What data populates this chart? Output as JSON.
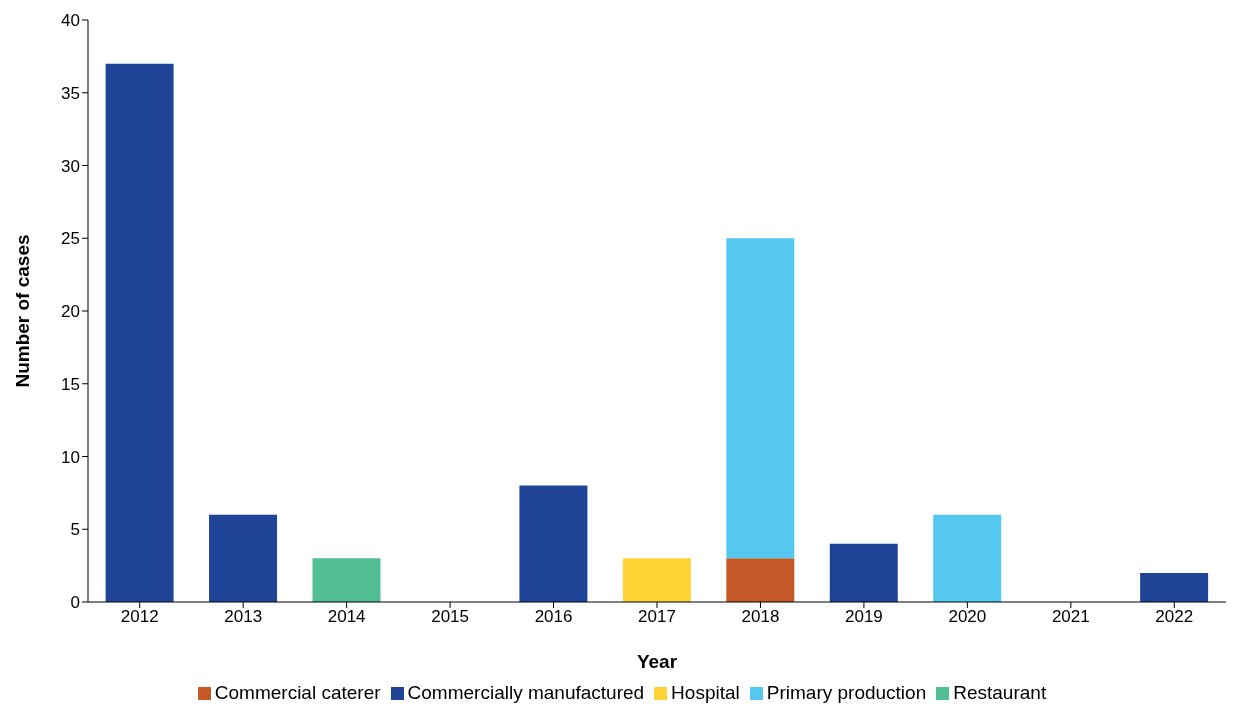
{
  "chart_data": {
    "type": "bar",
    "stacked": true,
    "xlabel": "Year",
    "ylabel": "Number of cases",
    "categories": [
      "2012",
      "2013",
      "2014",
      "2015",
      "2016",
      "2017",
      "2018",
      "2019",
      "2020",
      "2021",
      "2022"
    ],
    "series": [
      {
        "name": "Commercial caterer",
        "color": "#c55a28",
        "values": [
          null,
          null,
          null,
          null,
          null,
          null,
          3,
          null,
          null,
          null,
          null
        ]
      },
      {
        "name": "Commercially manufactured",
        "color": "#1f4497",
        "values": [
          37,
          6,
          null,
          null,
          8,
          null,
          null,
          4,
          null,
          null,
          2
        ]
      },
      {
        "name": "Hospital",
        "color": "#fdd335",
        "values": [
          null,
          null,
          null,
          null,
          null,
          3,
          null,
          null,
          null,
          null,
          null
        ]
      },
      {
        "name": "Primary production",
        "color": "#55c8f0",
        "values": [
          null,
          null,
          null,
          null,
          null,
          null,
          22,
          null,
          6,
          null,
          null
        ]
      },
      {
        "name": "Restaurant",
        "color": "#52be94",
        "values": [
          null,
          null,
          3,
          null,
          null,
          null,
          null,
          null,
          null,
          null,
          null
        ]
      }
    ],
    "ylim": [
      0,
      40
    ],
    "yticks": [
      0,
      5,
      10,
      15,
      20,
      25,
      30,
      35,
      40
    ],
    "grid": false,
    "legend": "bottom"
  }
}
